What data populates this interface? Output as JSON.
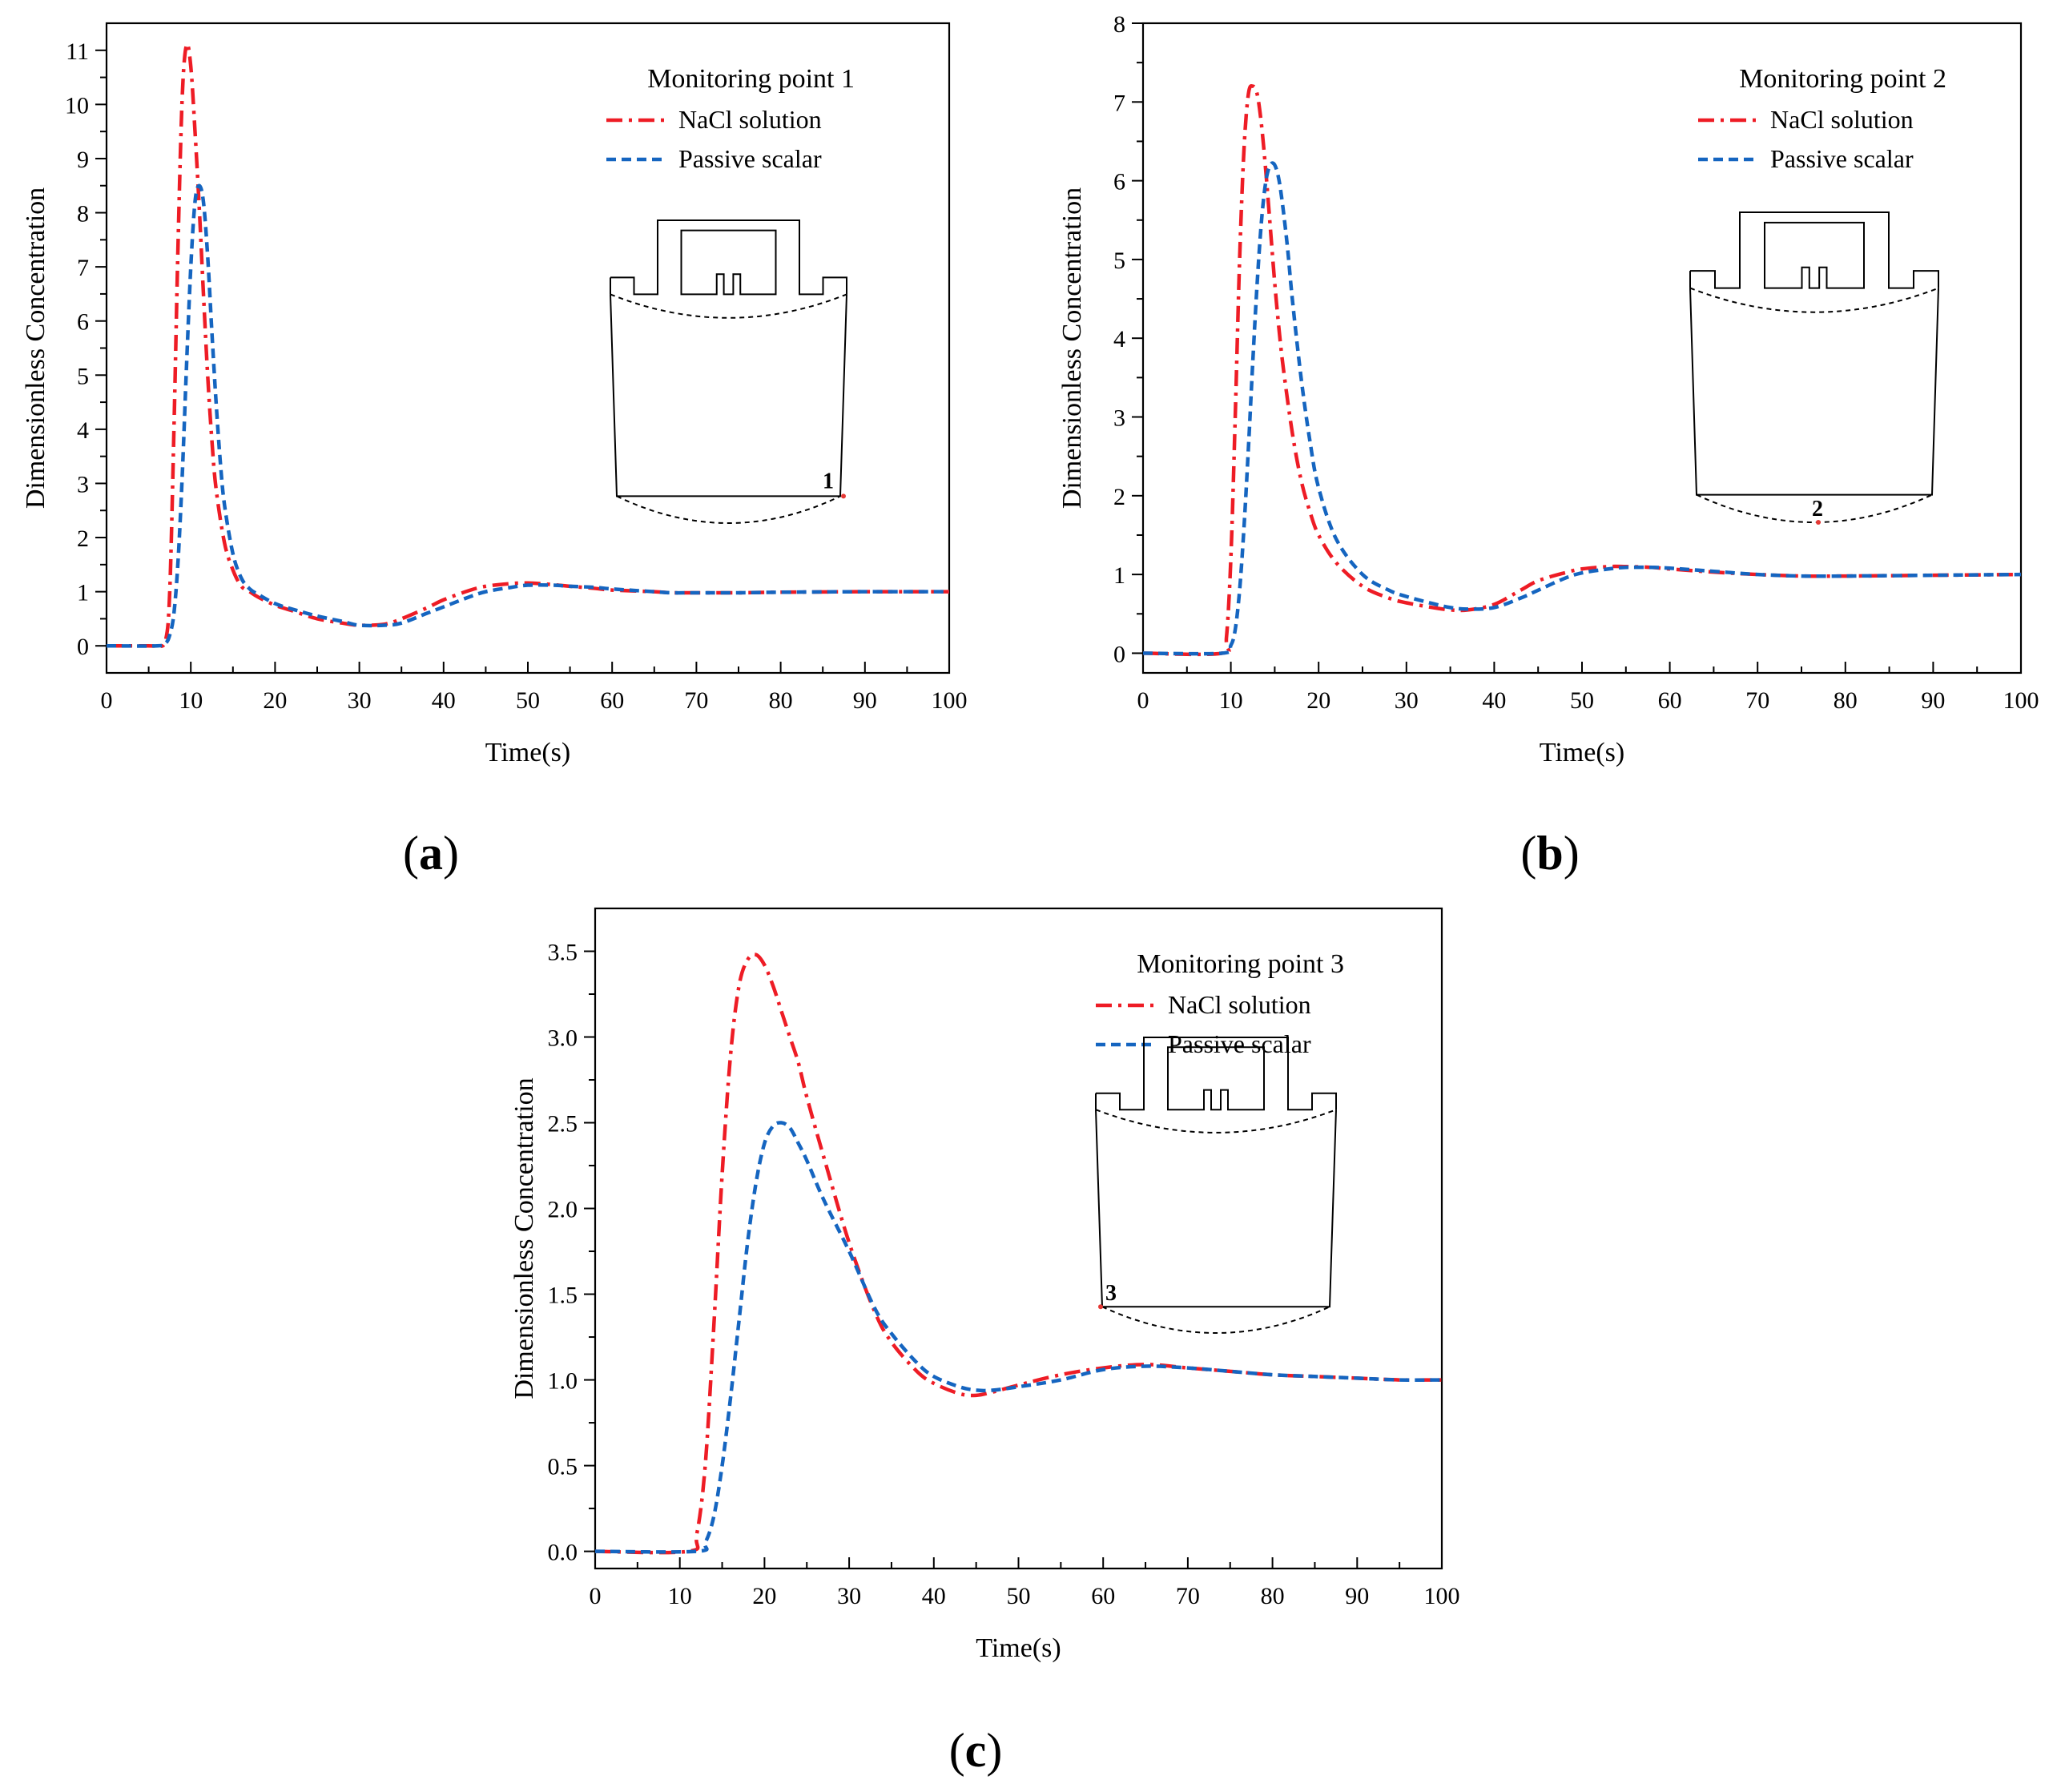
{
  "colors": {
    "nacl": "#ee1c25",
    "passive": "#1565c0",
    "axis": "#000000",
    "marker": "#e53935"
  },
  "panel_labels": [
    "a",
    "b",
    "c"
  ],
  "chart_data": [
    {
      "type": "line",
      "panel": "a",
      "title": "Monitoring point 1",
      "xlabel": "Time(s)",
      "ylabel": "Dimensionless Concentration",
      "xlim": [
        0,
        100
      ],
      "ylim": [
        -0.5,
        11.5
      ],
      "xticks": [
        0,
        10,
        20,
        30,
        40,
        50,
        60,
        70,
        80,
        90,
        100
      ],
      "yticks": [
        0,
        1,
        2,
        3,
        4,
        5,
        6,
        7,
        8,
        9,
        10,
        11
      ],
      "ytick_labels": [
        "0",
        "1",
        "2",
        "3",
        "4",
        "5",
        "6",
        "7",
        "8",
        "9",
        "10",
        "11"
      ],
      "grid": false,
      "legend": "top-right",
      "marker_label": "1",
      "series": [
        {
          "name": "NaCl solution",
          "style": "dash-dot",
          "x": [
            0,
            5,
            6,
            7,
            7.5,
            8,
            8.5,
            9,
            9.5,
            10,
            10.5,
            11,
            11.5,
            12,
            12.5,
            13,
            14,
            15,
            16,
            17,
            18,
            20,
            22,
            25,
            28,
            30,
            33,
            35,
            38,
            40,
            43,
            45,
            48,
            50,
            53,
            55,
            58,
            60,
            65,
            67,
            70,
            75,
            80,
            90,
            100
          ],
          "y": [
            0,
            0,
            0,
            0.1,
            1.0,
            4.0,
            7.5,
            10.2,
            11.1,
            10.7,
            9.5,
            8.1,
            6.5,
            5.0,
            3.8,
            2.9,
            1.9,
            1.4,
            1.1,
            1.0,
            0.9,
            0.75,
            0.65,
            0.5,
            0.42,
            0.38,
            0.4,
            0.5,
            0.7,
            0.85,
            1.02,
            1.1,
            1.15,
            1.16,
            1.13,
            1.1,
            1.06,
            1.03,
            1.0,
            0.98,
            0.98,
            0.98,
            0.99,
            1.0,
            1.0
          ]
        },
        {
          "name": "Passive scalar",
          "style": "dashed",
          "x": [
            0,
            6,
            7,
            7.5,
            8,
            8.5,
            9,
            9.5,
            10,
            10.5,
            11,
            11.5,
            12,
            12.5,
            13,
            13.5,
            14,
            15,
            16,
            17,
            18,
            20,
            22,
            25,
            28,
            30,
            33,
            35,
            38,
            40,
            43,
            45,
            48,
            50,
            53,
            55,
            58,
            60,
            65,
            67,
            70,
            75,
            80,
            90,
            100
          ],
          "y": [
            0,
            0,
            0.05,
            0.2,
            0.6,
            1.6,
            3.2,
            5.2,
            7.0,
            8.2,
            8.5,
            8.2,
            7.2,
            5.8,
            4.5,
            3.4,
            2.6,
            1.7,
            1.25,
            1.05,
            0.95,
            0.78,
            0.68,
            0.55,
            0.45,
            0.38,
            0.38,
            0.42,
            0.6,
            0.72,
            0.9,
            1.0,
            1.08,
            1.12,
            1.12,
            1.1,
            1.08,
            1.05,
            1.0,
            0.98,
            0.98,
            0.98,
            0.99,
            1.0,
            1.0
          ]
        }
      ]
    },
    {
      "type": "line",
      "panel": "b",
      "title": "Monitoring point 2",
      "xlabel": "Time(s)",
      "ylabel": "Dimensionless Concentration",
      "xlim": [
        0,
        100
      ],
      "ylim": [
        -0.25,
        8
      ],
      "xticks": [
        0,
        10,
        20,
        30,
        40,
        50,
        60,
        70,
        80,
        90,
        100
      ],
      "yticks": [
        0,
        1,
        2,
        3,
        4,
        5,
        6,
        7,
        8
      ],
      "ytick_labels": [
        "0",
        "1",
        "2",
        "3",
        "4",
        "5",
        "6",
        "7",
        "8"
      ],
      "grid": false,
      "legend": "top-right",
      "marker_label": "2",
      "series": [
        {
          "name": "NaCl solution",
          "style": "dash-dot",
          "x": [
            0,
            9,
            9.5,
            10,
            10.5,
            11,
            11.5,
            12,
            12.5,
            13,
            13.5,
            14,
            14.5,
            15,
            15.5,
            16,
            17,
            18,
            19,
            20,
            22,
            25,
            28,
            30,
            33,
            35,
            37,
            40,
            43,
            45,
            48,
            50,
            53,
            55,
            58,
            60,
            65,
            70,
            75,
            80,
            90,
            100
          ],
          "y": [
            0,
            0,
            0.2,
            1.2,
            3.0,
            5.0,
            6.4,
            7.1,
            7.2,
            7.1,
            6.7,
            6.1,
            5.4,
            4.7,
            4.1,
            3.6,
            2.8,
            2.2,
            1.8,
            1.5,
            1.15,
            0.85,
            0.7,
            0.64,
            0.58,
            0.55,
            0.55,
            0.62,
            0.8,
            0.92,
            1.02,
            1.07,
            1.1,
            1.1,
            1.09,
            1.07,
            1.03,
            1.0,
            0.98,
            0.98,
            0.99,
            1.0
          ]
        },
        {
          "name": "Passive scalar",
          "style": "dashed",
          "x": [
            0,
            9,
            10,
            10.5,
            11,
            11.5,
            12,
            12.5,
            13,
            13.5,
            14,
            14.5,
            15,
            15.5,
            16,
            16.5,
            17,
            18,
            19,
            20,
            22,
            25,
            28,
            30,
            33,
            35,
            37,
            40,
            43,
            45,
            48,
            50,
            53,
            55,
            58,
            60,
            65,
            70,
            75,
            80,
            90,
            100
          ],
          "y": [
            0,
            0,
            0.1,
            0.3,
            0.8,
            1.6,
            2.6,
            3.7,
            4.7,
            5.5,
            6.0,
            6.2,
            6.2,
            6.0,
            5.6,
            5.1,
            4.5,
            3.5,
            2.7,
            2.1,
            1.45,
            1.0,
            0.8,
            0.72,
            0.63,
            0.58,
            0.56,
            0.58,
            0.7,
            0.8,
            0.95,
            1.02,
            1.07,
            1.09,
            1.09,
            1.08,
            1.04,
            1.0,
            0.98,
            0.98,
            0.99,
            1.0
          ]
        }
      ]
    },
    {
      "type": "line",
      "panel": "c",
      "title": "Monitoring point 3",
      "xlabel": "Time(s)",
      "ylabel": "Dimensionless Concentration",
      "xlim": [
        0,
        100
      ],
      "ylim": [
        -0.1,
        3.75
      ],
      "xticks": [
        0,
        10,
        20,
        30,
        40,
        50,
        60,
        70,
        80,
        90,
        100
      ],
      "yticks": [
        0,
        0.5,
        1.0,
        1.5,
        2.0,
        2.5,
        3.0,
        3.5
      ],
      "ytick_labels": [
        "0.0",
        "0.5",
        "1.0",
        "1.5",
        "2.0",
        "2.5",
        "3.0",
        "3.5"
      ],
      "grid": false,
      "legend": "top-right",
      "marker_label": "3",
      "series": [
        {
          "name": "NaCl solution",
          "style": "dash-dot",
          "x": [
            0,
            11,
            12,
            13,
            14,
            15,
            16,
            17,
            18,
            19,
            20,
            21,
            22,
            23,
            24,
            25,
            27,
            30,
            33,
            35,
            38,
            40,
            43,
            45,
            47,
            50,
            55,
            60,
            65,
            70,
            75,
            80,
            85,
            90,
            95,
            100
          ],
          "y": [
            0,
            0,
            0.1,
            0.5,
            1.3,
            2.2,
            2.9,
            3.3,
            3.45,
            3.48,
            3.42,
            3.3,
            3.15,
            3.0,
            2.85,
            2.65,
            2.3,
            1.8,
            1.4,
            1.22,
            1.05,
            0.98,
            0.92,
            0.91,
            0.93,
            0.97,
            1.03,
            1.07,
            1.09,
            1.07,
            1.05,
            1.03,
            1.02,
            1.01,
            1.0,
            1.0
          ]
        },
        {
          "name": "Passive scalar",
          "style": "dashed",
          "x": [
            0,
            12,
            13,
            14,
            15,
            16,
            17,
            18,
            19,
            20,
            21,
            22,
            23,
            24,
            25,
            27,
            30,
            33,
            35,
            38,
            40,
            43,
            45,
            47,
            50,
            55,
            60,
            65,
            70,
            75,
            80,
            85,
            90,
            95,
            100
          ],
          "y": [
            0,
            0,
            0.05,
            0.2,
            0.5,
            0.9,
            1.35,
            1.8,
            2.15,
            2.38,
            2.48,
            2.5,
            2.47,
            2.38,
            2.28,
            2.05,
            1.75,
            1.42,
            1.27,
            1.1,
            1.02,
            0.96,
            0.94,
            0.94,
            0.96,
            1.0,
            1.06,
            1.08,
            1.07,
            1.05,
            1.03,
            1.02,
            1.01,
            1.0,
            1.0
          ]
        }
      ]
    }
  ]
}
